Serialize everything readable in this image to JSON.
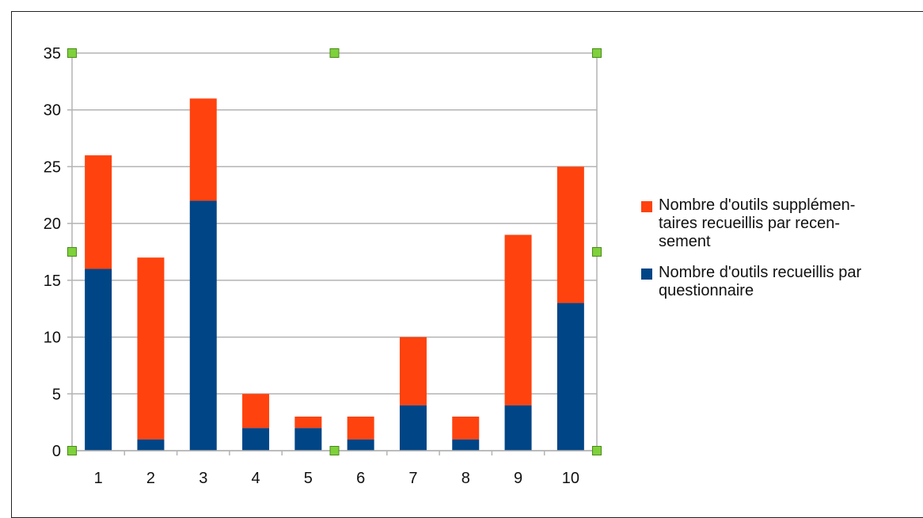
{
  "chart_data": {
    "type": "bar",
    "stacked": true,
    "categories": [
      "1",
      "2",
      "3",
      "4",
      "5",
      "6",
      "7",
      "8",
      "9",
      "10"
    ],
    "series": [
      {
        "name": "Nombre d'outils recueillis par questionnaire",
        "values": [
          16,
          1,
          22,
          2,
          2,
          1,
          4,
          1,
          4,
          13
        ],
        "color": "#004586"
      },
      {
        "name": "Nombre d'outils supplémentaires recueillis par recensement",
        "values": [
          10,
          16,
          9,
          3,
          1,
          2,
          6,
          2,
          15,
          12
        ],
        "color": "#ff420e"
      }
    ],
    "ylim": [
      0,
      35
    ],
    "yticks": [
      0,
      5,
      10,
      15,
      20,
      25,
      30,
      35
    ],
    "grid": true,
    "legend_position": "right",
    "handle_color": "#7fd13b",
    "title": "",
    "xlabel": "",
    "ylabel": ""
  },
  "legend": {
    "items": [
      {
        "label": "Nombre d'outils supplémen-\ntaires recueillis par recen-\nsement",
        "color": "#ff420e"
      },
      {
        "label": "Nombre d'outils recueillis par\nquestionnaire",
        "color": "#004586"
      }
    ]
  }
}
